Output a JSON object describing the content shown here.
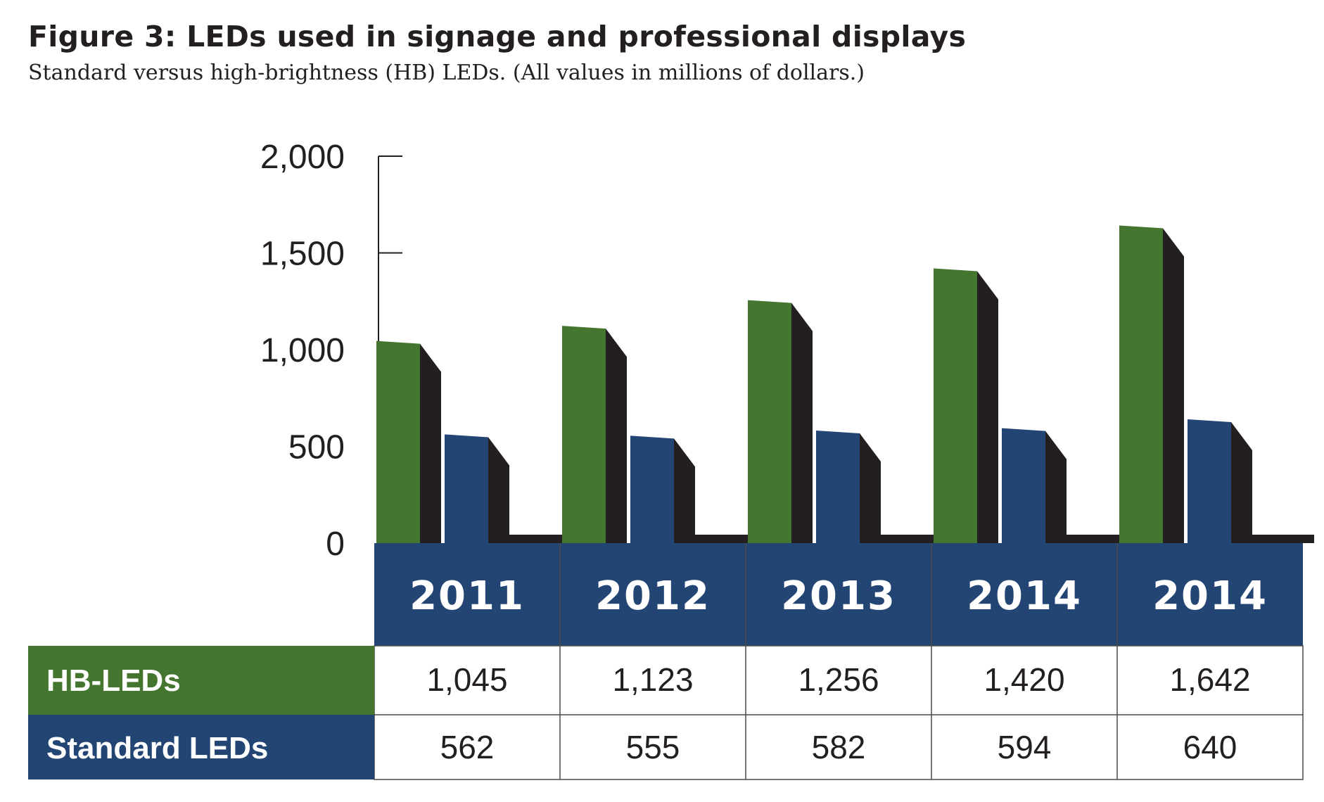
{
  "chart_data": {
    "type": "bar",
    "title": "Figure 3: LEDs used in signage and professional displays",
    "subtitle": "Standard versus high-brightness (HB) LEDs. (All values in millions of dollars.)",
    "categories": [
      "2011",
      "2012",
      "2013",
      "2014",
      "2014"
    ],
    "series": [
      {
        "name": "HB-LEDs",
        "values": [
          1045,
          1123,
          1256,
          1420,
          1642
        ],
        "value_labels": [
          "1,045",
          "1,123",
          "1,256",
          "1,420",
          "1,642"
        ]
      },
      {
        "name": "Standard LEDs",
        "values": [
          562,
          555,
          582,
          594,
          640
        ],
        "value_labels": [
          "562",
          "555",
          "582",
          "594",
          "640"
        ]
      }
    ],
    "ylim": [
      0,
      2000
    ],
    "yticks": [
      0,
      500,
      1000,
      1500,
      2000
    ],
    "ytick_labels": [
      "0",
      "500",
      "1,000",
      "1,500",
      "2,000"
    ],
    "grid": false,
    "legend": "data table below chart",
    "colors": {
      "hb": "#447630",
      "standard": "#224573",
      "side": "#231f20",
      "header": "#224573",
      "border": "#4a4a4a"
    }
  }
}
